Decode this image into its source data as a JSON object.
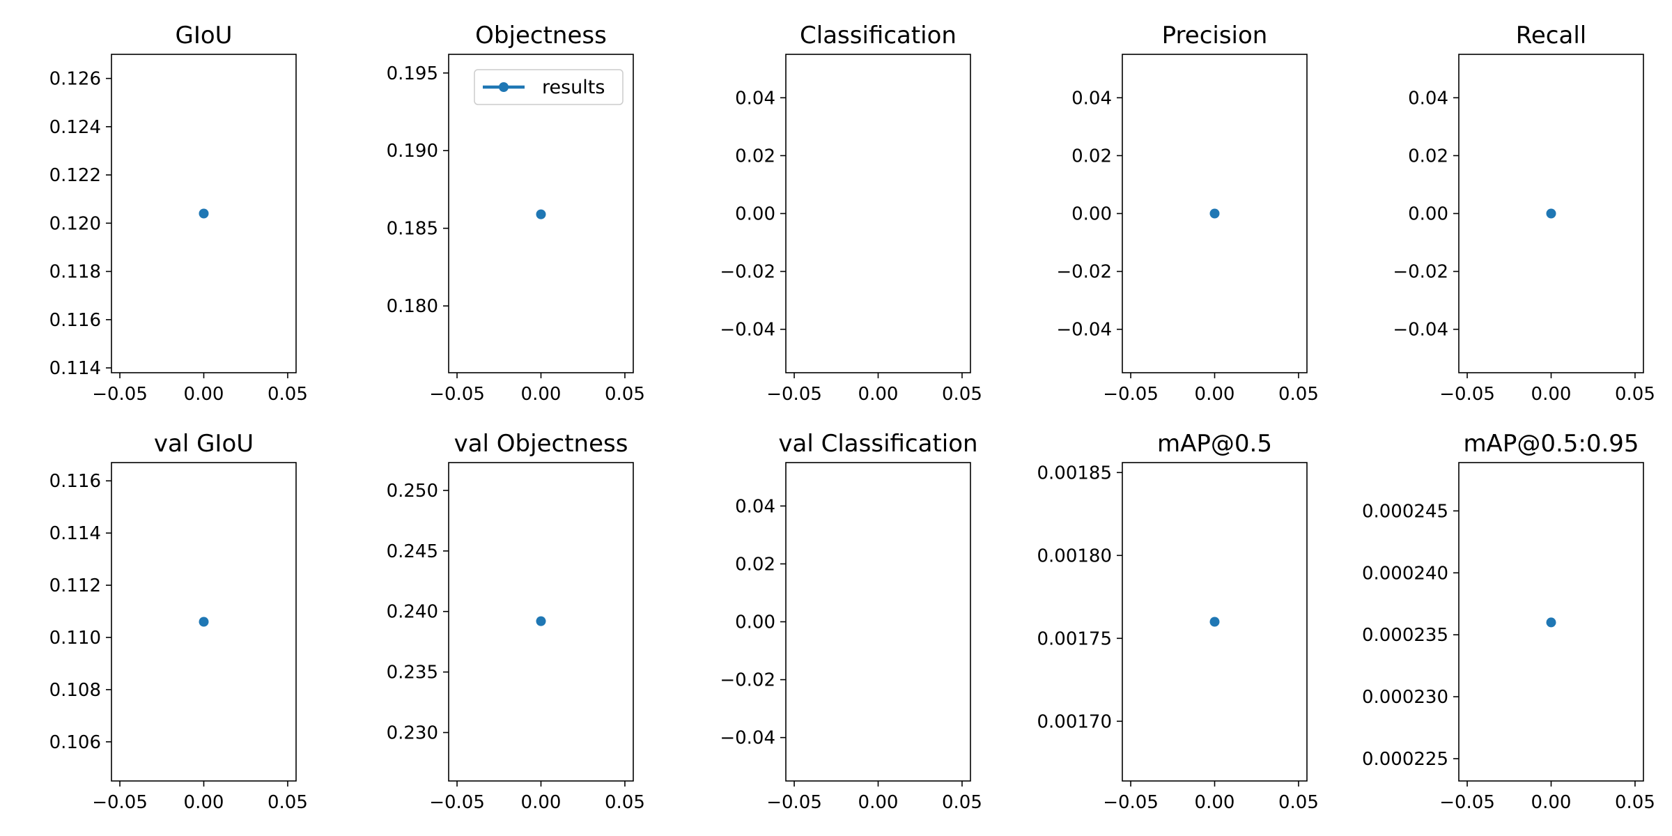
{
  "series_color": "#1f77b4",
  "legend": {
    "label": "results"
  },
  "chart_data": [
    {
      "type": "line",
      "title": "GIoU",
      "x": [
        0
      ],
      "y": [
        0.1204
      ],
      "xlim": [
        -0.055,
        0.055
      ],
      "xticks": [
        -0.05,
        0.0,
        0.05
      ],
      "xtick_labels": [
        "−0.05",
        "0.00",
        "0.05"
      ],
      "ylim": [
        0.1138,
        0.127
      ],
      "yticks": [
        0.114,
        0.116,
        0.118,
        0.12,
        0.122,
        0.124,
        0.126
      ],
      "ytick_labels": [
        "0.114",
        "0.116",
        "0.118",
        "0.120",
        "0.122",
        "0.124",
        "0.126"
      ],
      "legend": false
    },
    {
      "type": "line",
      "title": "Objectness",
      "x": [
        0
      ],
      "y": [
        0.1859
      ],
      "xlim": [
        -0.055,
        0.055
      ],
      "xticks": [
        -0.05,
        0.0,
        0.05
      ],
      "xtick_labels": [
        "−0.05",
        "0.00",
        "0.05"
      ],
      "ylim": [
        0.1757,
        0.1962
      ],
      "yticks": [
        0.18,
        0.185,
        0.19,
        0.195
      ],
      "ytick_labels": [
        "0.180",
        "0.185",
        "0.190",
        "0.195"
      ],
      "legend": true
    },
    {
      "type": "line",
      "title": "Classification",
      "x": [],
      "y": [],
      "xlim": [
        -0.055,
        0.055
      ],
      "xticks": [
        -0.05,
        0.0,
        0.05
      ],
      "xtick_labels": [
        "−0.05",
        "0.00",
        "0.05"
      ],
      "ylim": [
        -0.055,
        0.055
      ],
      "yticks": [
        -0.04,
        -0.02,
        0.0,
        0.02,
        0.04
      ],
      "ytick_labels": [
        "−0.04",
        "−0.02",
        "0.00",
        "0.02",
        "0.04"
      ],
      "legend": false
    },
    {
      "type": "line",
      "title": "Precision",
      "x": [
        0
      ],
      "y": [
        0.0
      ],
      "xlim": [
        -0.055,
        0.055
      ],
      "xticks": [
        -0.05,
        0.0,
        0.05
      ],
      "xtick_labels": [
        "−0.05",
        "0.00",
        "0.05"
      ],
      "ylim": [
        -0.055,
        0.055
      ],
      "yticks": [
        -0.04,
        -0.02,
        0.0,
        0.02,
        0.04
      ],
      "ytick_labels": [
        "−0.04",
        "−0.02",
        "0.00",
        "0.02",
        "0.04"
      ],
      "legend": false
    },
    {
      "type": "line",
      "title": "Recall",
      "x": [
        0
      ],
      "y": [
        0.0
      ],
      "xlim": [
        -0.055,
        0.055
      ],
      "xticks": [
        -0.05,
        0.0,
        0.05
      ],
      "xtick_labels": [
        "−0.05",
        "0.00",
        "0.05"
      ],
      "ylim": [
        -0.055,
        0.055
      ],
      "yticks": [
        -0.04,
        -0.02,
        0.0,
        0.02,
        0.04
      ],
      "ytick_labels": [
        "−0.04",
        "−0.02",
        "0.00",
        "0.02",
        "0.04"
      ],
      "legend": false
    },
    {
      "type": "line",
      "title": "val GIoU",
      "x": [
        0
      ],
      "y": [
        0.1106
      ],
      "xlim": [
        -0.055,
        0.055
      ],
      "xticks": [
        -0.05,
        0.0,
        0.05
      ],
      "xtick_labels": [
        "−0.05",
        "0.00",
        "0.05"
      ],
      "ylim": [
        0.1045,
        0.1167
      ],
      "yticks": [
        0.106,
        0.108,
        0.11,
        0.112,
        0.114,
        0.116
      ],
      "ytick_labels": [
        "0.106",
        "0.108",
        "0.110",
        "0.112",
        "0.114",
        "0.116"
      ],
      "legend": false
    },
    {
      "type": "line",
      "title": "val Objectness",
      "x": [
        0
      ],
      "y": [
        0.2392
      ],
      "xlim": [
        -0.055,
        0.055
      ],
      "xticks": [
        -0.05,
        0.0,
        0.05
      ],
      "xtick_labels": [
        "−0.05",
        "0.00",
        "0.05"
      ],
      "ylim": [
        0.226,
        0.2523
      ],
      "yticks": [
        0.23,
        0.235,
        0.24,
        0.245,
        0.25
      ],
      "ytick_labels": [
        "0.230",
        "0.235",
        "0.240",
        "0.245",
        "0.250"
      ],
      "legend": false
    },
    {
      "type": "line",
      "title": "val Classification",
      "x": [],
      "y": [],
      "xlim": [
        -0.055,
        0.055
      ],
      "xticks": [
        -0.05,
        0.0,
        0.05
      ],
      "xtick_labels": [
        "−0.05",
        "0.00",
        "0.05"
      ],
      "ylim": [
        -0.055,
        0.055
      ],
      "yticks": [
        -0.04,
        -0.02,
        0.0,
        0.02,
        0.04
      ],
      "ytick_labels": [
        "−0.04",
        "−0.02",
        "0.00",
        "0.02",
        "0.04"
      ],
      "legend": false
    },
    {
      "type": "line",
      "title": "mAP@0.5",
      "x": [
        0
      ],
      "y": [
        0.00176
      ],
      "xlim": [
        -0.055,
        0.055
      ],
      "xticks": [
        -0.05,
        0.0,
        0.05
      ],
      "xtick_labels": [
        "−0.05",
        "0.00",
        "0.05"
      ],
      "ylim": [
        0.001664,
        0.001856
      ],
      "yticks": [
        0.0017,
        0.00175,
        0.0018,
        0.00185
      ],
      "ytick_labels": [
        "0.00170",
        "0.00175",
        "0.00180",
        "0.00185"
      ],
      "legend": false
    },
    {
      "type": "line",
      "title": "mAP@0.5:0.95",
      "x": [
        0
      ],
      "y": [
        0.000236
      ],
      "xlim": [
        -0.055,
        0.055
      ],
      "xticks": [
        -0.05,
        0.0,
        0.05
      ],
      "xtick_labels": [
        "−0.05",
        "0.00",
        "0.05"
      ],
      "ylim": [
        0.0002232,
        0.0002489
      ],
      "yticks": [
        0.000225,
        0.00023,
        0.000235,
        0.00024,
        0.000245
      ],
      "ytick_labels": [
        "0.000225",
        "0.000230",
        "0.000235",
        "0.000240",
        "0.000245"
      ],
      "legend": false
    }
  ]
}
